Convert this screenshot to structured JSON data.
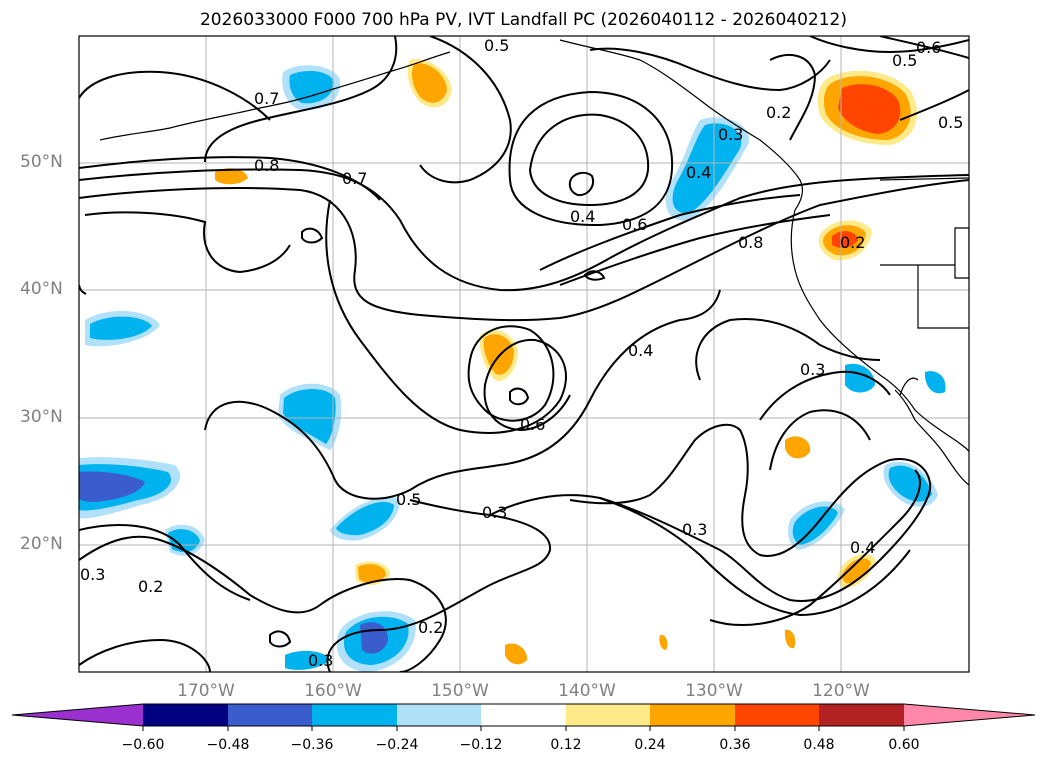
{
  "title": "2026033000 F000 700 hPa PV, IVT Landfall PC (2026040112 - 2026040212)",
  "lat_labels": [
    "50°N",
    "40°N",
    "30°N",
    "20°N"
  ],
  "lon_labels": [
    "170°W",
    "160°W",
    "150°W",
    "140°W",
    "130°W",
    "120°W"
  ],
  "colorbar": {
    "ticks": [
      "−0.60",
      "−0.48",
      "−0.36",
      "−0.24",
      "−0.12",
      "0.12",
      "0.24",
      "0.36",
      "0.48",
      "0.60"
    ],
    "colors": [
      "#9b30d0",
      "#000080",
      "#3a5ccc",
      "#00b2ee",
      "#b0e0fa",
      "#ffffff",
      "#ffea8a",
      "#ffa500",
      "#ff4500",
      "#b22222",
      "#ff88aa"
    ]
  },
  "contour_labels": [
    "0.5",
    "0.6",
    "0.5",
    "0.5",
    "0.7",
    "0.8",
    "0.7",
    "0.4",
    "0.6",
    "0.4",
    "0.8",
    "0.2",
    "0.2",
    "0.4",
    "0.6",
    "0.3",
    "0.5",
    "0.3",
    "0.3",
    "0.4",
    "0.2",
    "0.2",
    "0.3",
    "0.3",
    "0.3"
  ]
}
